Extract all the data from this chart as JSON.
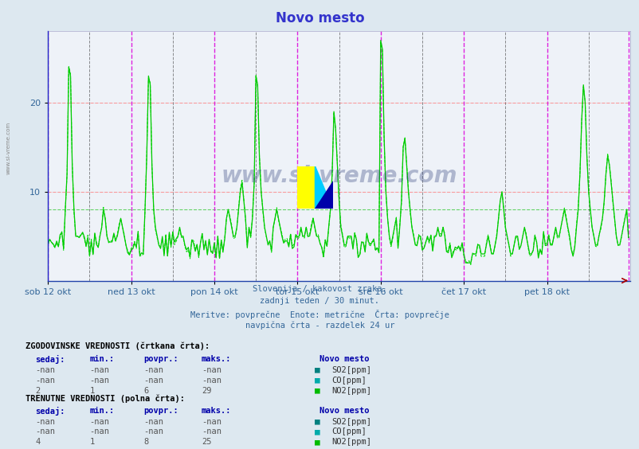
{
  "title": "Novo mesto",
  "title_color": "#3333cc",
  "bg_color": "#dde8f0",
  "plot_bg_color": "#eef2f8",
  "xlabel_color": "#336699",
  "ylabel_color": "#336699",
  "x_tick_labels": [
    "sob 12 okt",
    "ned 13 okt",
    "pon 14 okt",
    "tor 15 okt",
    "sre 16 okt",
    "čet 17 okt",
    "pet 18 okt"
  ],
  "x_tick_positions": [
    0,
    48,
    96,
    144,
    192,
    240,
    288
  ],
  "x_day_lines_magenta": [
    0,
    48,
    96,
    144,
    192,
    240,
    288,
    335
  ],
  "x_midnight_lines": [
    24,
    72,
    120,
    168,
    216,
    264,
    312
  ],
  "ylim_min": 0,
  "ylim_max": 28,
  "yticks": [
    10,
    20
  ],
  "hline_red_1": 10,
  "hline_red_2": 20,
  "hline_green": 8,
  "total_points": 336,
  "subtitle_lines": [
    "Slovenija / kakovost zraka.",
    "zadnji teden / 30 minut.",
    "Meritve: povprečne  Enote: metrične  Črta: povprečje",
    "navpična črta - razdelek 24 ur"
  ],
  "watermark": "www.si-vreme.com",
  "solid_line_color": "#00cc00",
  "dashed_line_color": "#00dd00",
  "left_label": "www.si-vreme.com",
  "hist_header": "ZGODOVINSKE VREDNOSTI (črtkana črta):",
  "curr_header": "TRENUTNE VREDNOSTI (polna črta):",
  "col_headers": [
    "sedaj:",
    "min.:",
    "povpr.:",
    "maks.:"
  ],
  "station_label": "Novo mesto",
  "hist_rows": [
    [
      "-nan",
      "-nan",
      "-nan",
      "-nan",
      "SO2[ppm]",
      "#008080"
    ],
    [
      "-nan",
      "-nan",
      "-nan",
      "-nan",
      "CO[ppm]",
      "#00aaaa"
    ],
    [
      "2",
      "1",
      "6",
      "29",
      "NO2[ppm]",
      "#00bb00"
    ]
  ],
  "curr_rows": [
    [
      "-nan",
      "-nan",
      "-nan",
      "-nan",
      "SO2[ppm]",
      "#008080"
    ],
    [
      "-nan",
      "-nan",
      "-nan",
      "-nan",
      "CO[ppm]",
      "#00aaaa"
    ],
    [
      "4",
      "1",
      "8",
      "25",
      "NO2[ppm]",
      "#00bb00"
    ]
  ]
}
